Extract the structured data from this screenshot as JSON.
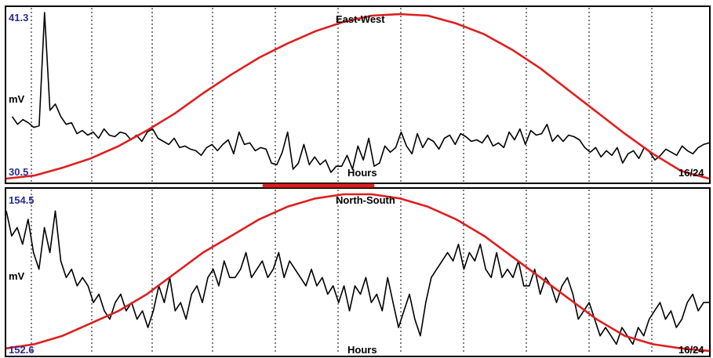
{
  "colors": {
    "signal": "#000000",
    "sun_curve": "#dd1f1f",
    "range_label": "#2b2b8f",
    "grid": "#000000",
    "frame": "#000000",
    "background": "#ffffff"
  },
  "chart_data": [
    {
      "type": "line",
      "title": "East-West",
      "ylabel": "mV",
      "xlabel": "Hours",
      "ymax_label": "41.3",
      "ymin_label": "30.5",
      "ylim": [
        30.5,
        41.3
      ],
      "xlim": [
        0,
        24
      ],
      "end_label": "16/24",
      "grid": "vertical dotted",
      "series": [
        {
          "values": [
            34.6,
            34.1,
            34.4,
            34.2,
            33.9,
            34.0,
            41.3,
            35.0,
            35.4,
            34.6,
            34.1,
            34.2,
            33.5,
            33.7,
            33.4,
            33.6,
            33.2,
            33.8,
            33.4,
            33.3,
            33.6,
            33.5,
            33.1,
            33.4,
            33.0,
            33.6,
            33.8,
            33.2,
            33.0,
            32.8,
            33.2,
            32.6,
            32.7,
            32.5,
            32.4,
            32.1,
            32.6,
            32.8,
            32.4,
            32.8,
            33.1,
            32.2,
            33.6,
            32.8,
            32.9,
            32.4,
            32.6,
            32.5,
            31.6,
            31.5,
            32.3,
            33.6,
            31.2,
            31.6,
            32.8,
            31.5,
            32.0,
            31.5,
            31.8,
            31.0,
            31.4,
            31.4,
            32.1,
            31.2,
            32.7,
            31.8,
            33.2,
            31.4,
            31.6,
            32.7,
            32.3,
            32.6,
            33.6,
            32.7,
            32.2,
            33.5,
            32.6,
            33.2,
            33.0,
            32.5,
            33.2,
            33.4,
            32.8,
            33.5,
            33.3,
            33.0,
            33.1,
            32.9,
            33.4,
            32.7,
            32.9,
            32.6,
            33.6,
            33.1,
            33.8,
            32.8,
            33.7,
            33.4,
            33.5,
            34.1,
            33.0,
            33.4,
            33.0,
            33.4,
            33.3,
            33.1,
            32.6,
            32.3,
            32.6,
            32.0,
            32.4,
            32.1,
            32.6,
            31.6,
            32.2,
            32.4,
            31.9,
            32.6,
            32.3,
            31.8,
            32.1,
            32.5,
            32.3,
            32.1,
            32.7,
            32.4,
            32.2,
            32.6,
            32.8,
            32.9
          ],
          "x_start": 0.2,
          "x_end": 24
        },
        {
          "values": [
            30.6,
            30.8,
            31.3,
            31.9,
            32.7,
            33.7,
            34.8,
            36.1,
            37.3,
            38.4,
            39.3,
            40.1,
            40.7,
            41.1,
            41.2,
            41.1,
            40.6,
            39.9,
            38.9,
            37.7,
            36.3,
            34.9,
            33.5,
            32.2,
            31.1,
            30.6
          ],
          "x_start": 0,
          "x_end": 24
        }
      ]
    },
    {
      "type": "line",
      "title": "North-South",
      "ylabel": "mV",
      "xlabel": "Hours",
      "ymax_label": "154.5",
      "ymin_label": "152.6",
      "ylim": [
        152.6,
        154.5
      ],
      "xlim": [
        0,
        24
      ],
      "end_label": "16/24",
      "grid": "vertical dotted",
      "series": [
        {
          "values": [
            154.3,
            154.0,
            154.1,
            153.9,
            154.2,
            153.8,
            153.6,
            154.1,
            153.8,
            154.3,
            153.7,
            153.5,
            153.6,
            153.4,
            153.5,
            153.4,
            153.2,
            153.3,
            153.1,
            153.0,
            153.2,
            153.3,
            153.1,
            153.2,
            153.0,
            153.1,
            152.9,
            153.1,
            153.4,
            153.2,
            153.5,
            153.1,
            153.2,
            153.0,
            153.3,
            153.4,
            153.2,
            153.5,
            153.6,
            153.4,
            153.7,
            153.5,
            153.5,
            153.6,
            153.8,
            153.5,
            153.6,
            153.7,
            153.5,
            153.6,
            153.8,
            153.5,
            153.7,
            153.6,
            153.5,
            153.4,
            153.6,
            153.4,
            153.5,
            153.3,
            153.4,
            153.2,
            153.4,
            153.1,
            153.4,
            153.3,
            153.5,
            153.2,
            153.3,
            153.1,
            153.5,
            153.2,
            152.9,
            153.1,
            153.3,
            153.0,
            152.8,
            153.2,
            153.5,
            153.6,
            153.7,
            153.8,
            153.7,
            153.9,
            153.6,
            153.8,
            153.7,
            153.9,
            153.6,
            153.5,
            153.8,
            153.5,
            153.6,
            153.5,
            153.7,
            153.4,
            153.4,
            153.6,
            153.3,
            153.5,
            153.4,
            153.2,
            153.4,
            153.5,
            153.3,
            153.0,
            153.1,
            153.2,
            153.0,
            152.8,
            152.9,
            152.8,
            152.7,
            152.9,
            152.8,
            152.7,
            152.9,
            152.8,
            153.0,
            153.1,
            153.2,
            153.0,
            153.1,
            152.9,
            153.0,
            153.2,
            153.3,
            153.1,
            153.2,
            153.2
          ],
          "x_start": 0,
          "x_end": 24
        },
        {
          "values": [
            152.65,
            152.7,
            152.8,
            152.95,
            153.1,
            153.3,
            153.55,
            153.8,
            154.0,
            154.2,
            154.35,
            154.45,
            154.5,
            154.5,
            154.45,
            154.35,
            154.2,
            154.0,
            153.75,
            153.5,
            153.25,
            153.0,
            152.8,
            152.7,
            152.65,
            152.62
          ],
          "x_start": 0,
          "x_end": 24
        }
      ]
    }
  ]
}
